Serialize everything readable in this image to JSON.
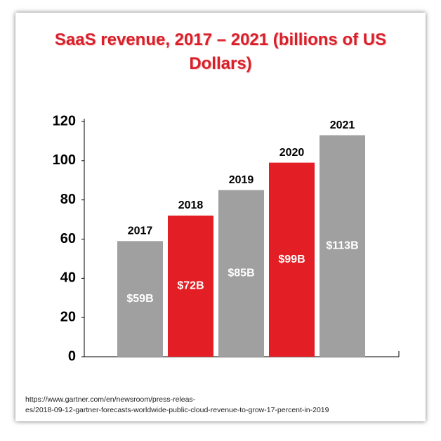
{
  "chart_data": {
    "type": "bar",
    "title": "SaaS revenue, 2017 – 2021 (billions of US Dollars)",
    "categories": [
      "2017",
      "2018",
      "2019",
      "2020",
      "2021"
    ],
    "values": [
      59,
      72,
      85,
      99,
      113
    ],
    "value_labels": [
      "$59B",
      "$72B",
      "$85B",
      "$99B",
      "$113B"
    ],
    "colors": [
      "#a0a0a0",
      "#e31e24",
      "#a0a0a0",
      "#e31e24",
      "#a0a0a0"
    ],
    "ylim": [
      0,
      120
    ],
    "yticks": [
      0,
      20,
      40,
      60,
      80,
      100,
      120
    ],
    "source": [
      "https://www.gartner.com/en/newsroom/press-releas-",
      "es/2018-09-12-gartner-forecasts-worldwide-public-cloud-revenue-to-grow-17-percent-in-2019"
    ]
  }
}
